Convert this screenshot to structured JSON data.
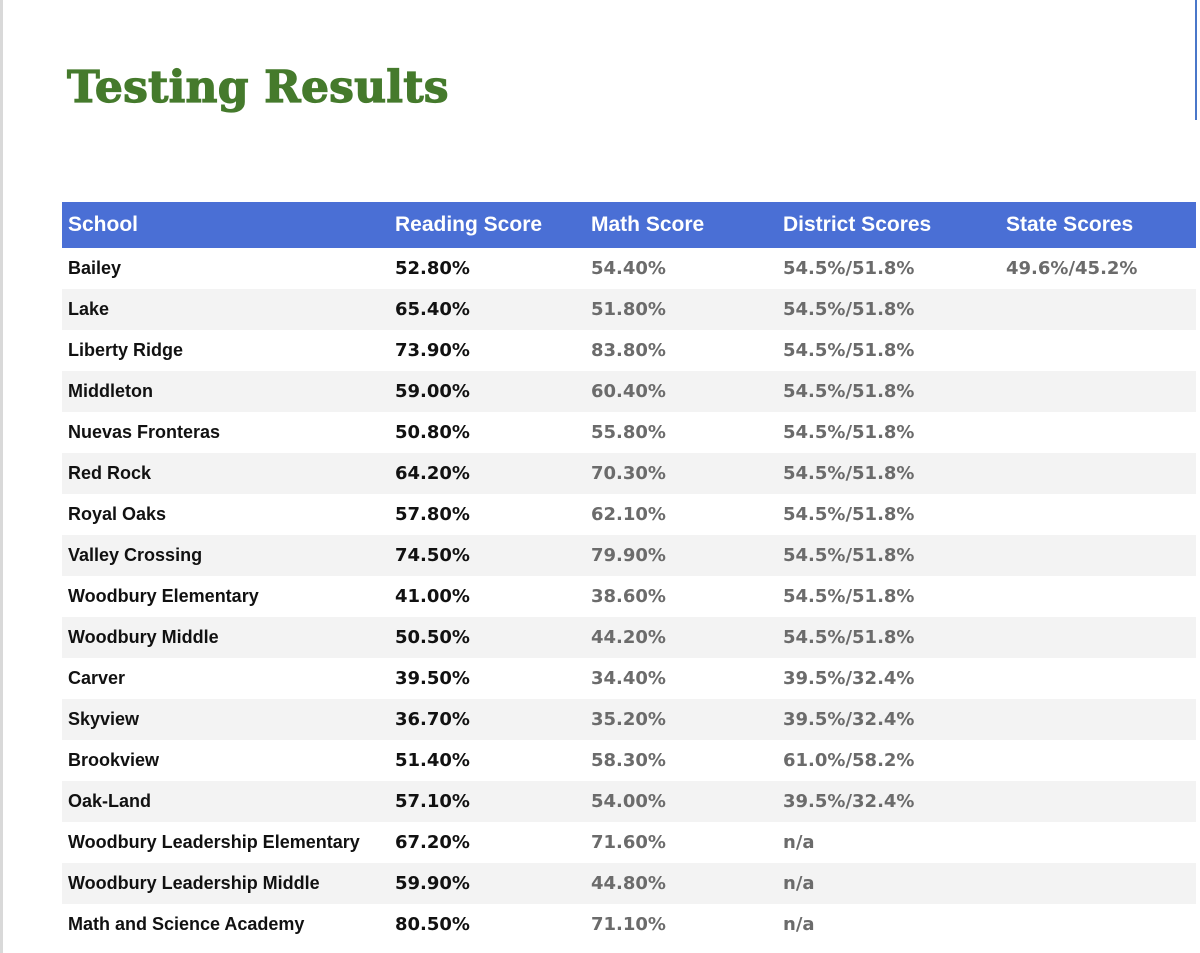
{
  "page": {
    "title": "Testing Results"
  },
  "colors": {
    "title": "#457a2c",
    "header_bg": "#4a6fd5",
    "header_text": "#ffffff",
    "row_alt_bg": "#f3f3f3",
    "muted_text": "#6b6b6b"
  },
  "table": {
    "headers": [
      "School",
      "Reading Score",
      "Math Score",
      "District Scores",
      "State Scores"
    ],
    "rows": [
      {
        "school": "Bailey",
        "reading": "52.80%",
        "math": "54.40%",
        "district": "54.5%/51.8%",
        "state": "49.6%/45.2%"
      },
      {
        "school": "Lake",
        "reading": "65.40%",
        "math": "51.80%",
        "district": "54.5%/51.8%",
        "state": ""
      },
      {
        "school": "Liberty Ridge",
        "reading": "73.90%",
        "math": "83.80%",
        "district": "54.5%/51.8%",
        "state": ""
      },
      {
        "school": "Middleton",
        "reading": "59.00%",
        "math": "60.40%",
        "district": "54.5%/51.8%",
        "state": ""
      },
      {
        "school": "Nuevas Fronteras",
        "reading": "50.80%",
        "math": "55.80%",
        "district": "54.5%/51.8%",
        "state": ""
      },
      {
        "school": "Red Rock",
        "reading": "64.20%",
        "math": "70.30%",
        "district": "54.5%/51.8%",
        "state": ""
      },
      {
        "school": "Royal Oaks",
        "reading": "57.80%",
        "math": "62.10%",
        "district": "54.5%/51.8%",
        "state": ""
      },
      {
        "school": "Valley Crossing",
        "reading": "74.50%",
        "math": "79.90%",
        "district": "54.5%/51.8%",
        "state": ""
      },
      {
        "school": "Woodbury Elementary",
        "reading": "41.00%",
        "math": "38.60%",
        "district": "54.5%/51.8%",
        "state": ""
      },
      {
        "school": "Woodbury Middle",
        "reading": "50.50%",
        "math": "44.20%",
        "district": "54.5%/51.8%",
        "state": ""
      },
      {
        "school": "Carver",
        "reading": "39.50%",
        "math": "34.40%",
        "district": "39.5%/32.4%",
        "state": ""
      },
      {
        "school": "Skyview",
        "reading": "36.70%",
        "math": "35.20%",
        "district": "39.5%/32.4%",
        "state": ""
      },
      {
        "school": "Brookview",
        "reading": "51.40%",
        "math": "58.30%",
        "district": "61.0%/58.2%",
        "state": ""
      },
      {
        "school": "Oak-Land",
        "reading": "57.10%",
        "math": "54.00%",
        "district": "39.5%/32.4%",
        "state": ""
      },
      {
        "school": "Woodbury Leadership Elementary",
        "reading": "67.20%",
        "math": "71.60%",
        "district": "n/a",
        "state": ""
      },
      {
        "school": "Woodbury Leadership Middle",
        "reading": "59.90%",
        "math": "44.80%",
        "district": "n/a",
        "state": ""
      },
      {
        "school": "Math and Science Academy",
        "reading": "80.50%",
        "math": "71.10%",
        "district": "n/a",
        "state": ""
      }
    ]
  }
}
